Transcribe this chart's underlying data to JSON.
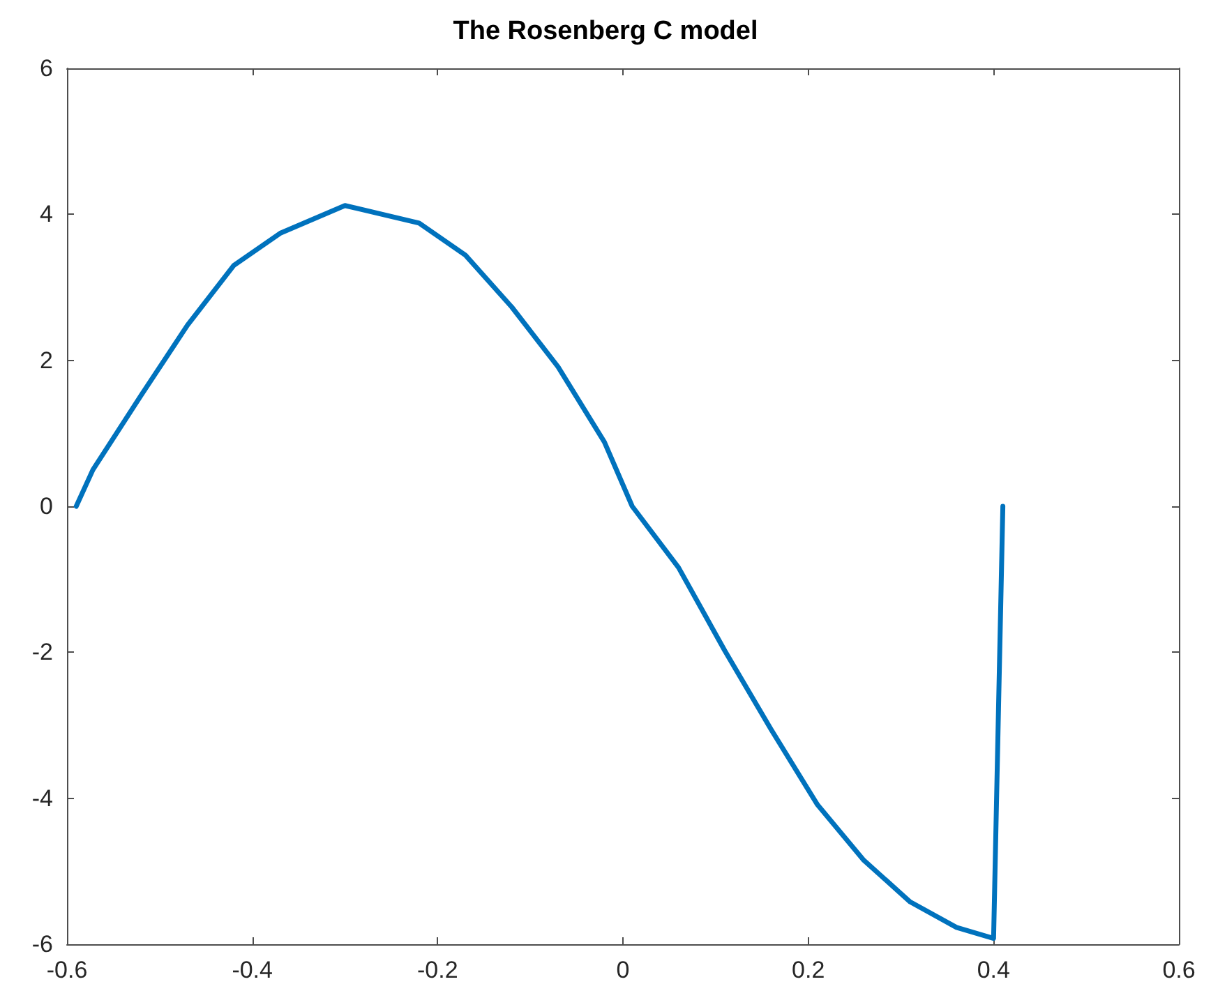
{
  "chart_data": {
    "type": "line",
    "title": "The Rosenberg C model",
    "series": [
      {
        "color": "#0072bd",
        "x": [
          -0.59,
          -0.572,
          -0.52,
          -0.47,
          -0.42,
          -0.37,
          -0.3,
          -0.22,
          -0.17,
          -0.12,
          -0.07,
          -0.02,
          0.01,
          0.06,
          0.11,
          0.16,
          0.21,
          0.26,
          0.31,
          0.36,
          0.4,
          0.41
        ],
        "values": [
          0,
          0.5,
          1.52,
          2.48,
          3.3,
          3.74,
          4.12,
          3.88,
          3.44,
          2.73,
          1.91,
          0.88,
          0,
          -0.84,
          -1.98,
          -3.06,
          -4.09,
          -4.85,
          -5.42,
          -5.77,
          -5.92,
          0
        ]
      }
    ],
    "xlim": [
      -0.6,
      0.6
    ],
    "xticks": [
      -0.6,
      -0.4,
      -0.2,
      0,
      0.2,
      0.4,
      0.6
    ],
    "ylim": [
      -6,
      6
    ],
    "yticks": [
      -6,
      -4,
      -2,
      0,
      2,
      4,
      6
    ],
    "marker": "none",
    "line_style": "solid"
  }
}
